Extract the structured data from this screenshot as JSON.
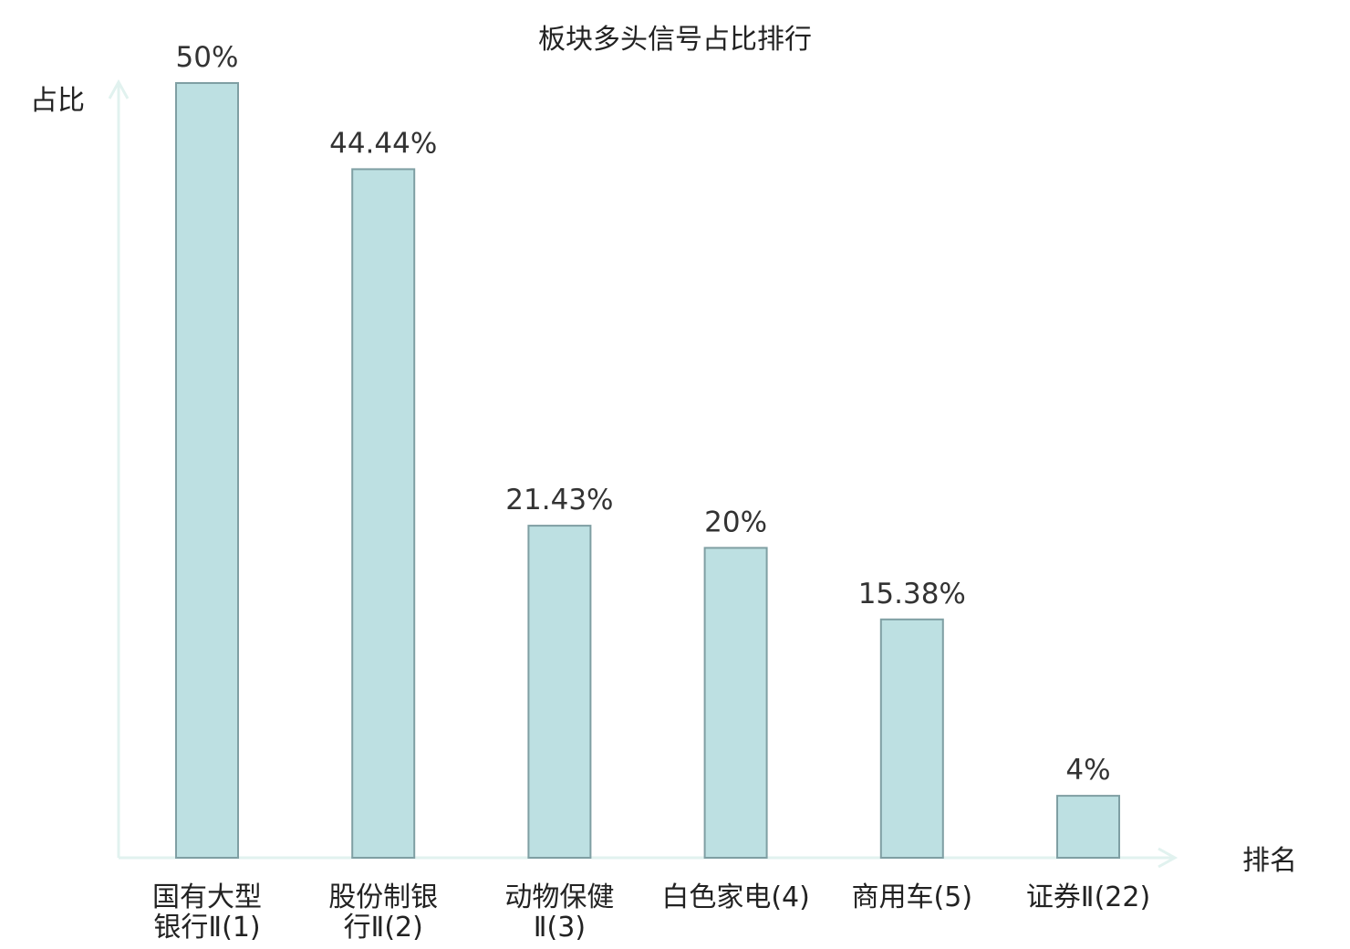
{
  "colors": {
    "bar_fill": "#bde0e2",
    "bar_stroke": "#7f9fa3",
    "axis": "#e1f2ef",
    "text": "#222222",
    "highlight": "#e02020"
  },
  "chart_data": {
    "type": "bar",
    "title": "板块多头信号占比排行",
    "xlabel": "排名",
    "ylabel": "占比",
    "ylim": [
      0,
      50
    ],
    "grid": false,
    "unit": "%",
    "categories": [
      {
        "lines": [
          "国有大型",
          "银行Ⅱ(1)"
        ],
        "highlight": false
      },
      {
        "lines": [
          "股份制银",
          "行Ⅱ(2)"
        ],
        "highlight": false
      },
      {
        "lines": [
          "动物保健",
          "Ⅱ(3)"
        ],
        "highlight": false
      },
      {
        "lines": [
          "白色家电(4)"
        ],
        "highlight": false
      },
      {
        "lines": [
          "商用车(5)"
        ],
        "highlight": false
      },
      {
        "lines": [
          "证券Ⅱ(22)"
        ],
        "highlight": true
      }
    ],
    "values": [
      50,
      44.44,
      21.43,
      20,
      15.38,
      4
    ],
    "value_labels": [
      "50%",
      "44.44%",
      "21.43%",
      "20%",
      "15.38%",
      "4%"
    ]
  }
}
